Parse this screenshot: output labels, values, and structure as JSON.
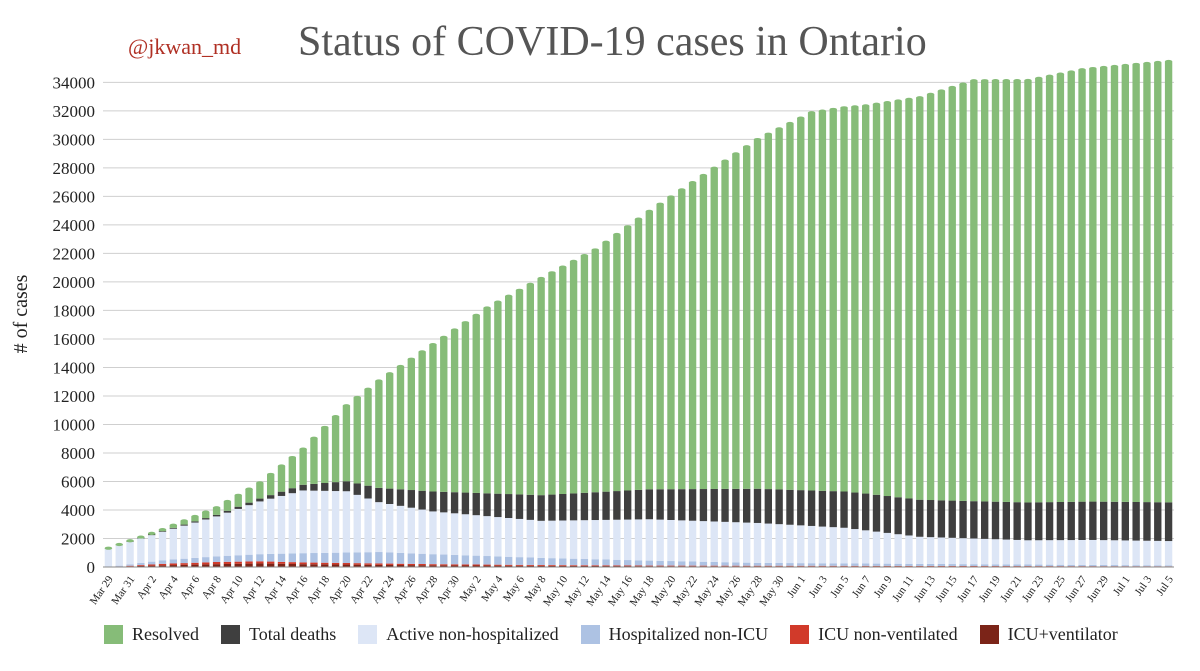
{
  "header": {
    "handle": "@jkwan_md"
  },
  "chart_data": {
    "type": "bar",
    "stacked": true,
    "title": "Status of COVID-19 cases in Ontario",
    "ylabel": "# of cases",
    "xlabel": "",
    "ylim": [
      0,
      35500
    ],
    "yticks": [
      0,
      2000,
      4000,
      6000,
      8000,
      10000,
      12000,
      14000,
      16000,
      18000,
      20000,
      22000,
      24000,
      26000,
      28000,
      30000,
      32000,
      34000
    ],
    "grid": true,
    "legend_position": "bottom",
    "x_start": "Mar 29",
    "x_end": "Jul 5",
    "x_tick_labels": [
      "Mar 29",
      "Mar 31",
      "Apr 2",
      "Apr 4",
      "Apr 6",
      "Apr 8",
      "Apr 10",
      "Apr 12",
      "Apr 14",
      "Apr 16",
      "Apr 18",
      "Apr 20",
      "Apr 22",
      "Apr 24",
      "Apr 26",
      "Apr 28",
      "Apr 30",
      "May 2",
      "May 4",
      "May 6",
      "May 8",
      "May 10",
      "May 12",
      "May 14",
      "May 16",
      "May 18",
      "May 20",
      "May 22",
      "May 24",
      "May 26",
      "May 28",
      "May 30",
      "Jun 1",
      "Jun 3",
      "Jun 5",
      "Jun 7",
      "Jun 9",
      "Jun 11",
      "Jun 13",
      "Jun 15",
      "Jun 17",
      "Jun 19",
      "Jun 21",
      "Jun 23",
      "Jun 25",
      "Jun 27",
      "Jun 29",
      "Jul 1",
      "Jul 3",
      "Jul 5"
    ],
    "series": [
      {
        "name": "ICU+ventilator",
        "color": "#7b2418",
        "keypoints": [
          [
            0,
            0
          ],
          [
            5,
            120
          ],
          [
            10,
            200
          ],
          [
            14,
            250
          ],
          [
            18,
            200
          ],
          [
            25,
            150
          ],
          [
            30,
            120
          ],
          [
            40,
            80
          ],
          [
            50,
            60
          ],
          [
            99,
            30
          ]
        ]
      },
      {
        "name": "ICU non-ventilated",
        "color": "#d13a2a",
        "keypoints": [
          [
            0,
            0
          ],
          [
            5,
            100
          ],
          [
            10,
            150
          ],
          [
            14,
            150
          ],
          [
            18,
            120
          ],
          [
            25,
            100
          ],
          [
            30,
            80
          ],
          [
            40,
            60
          ],
          [
            50,
            40
          ],
          [
            99,
            20
          ]
        ]
      },
      {
        "name": "Hospitalized non-ICU",
        "color": "#adc2e3",
        "keypoints": [
          [
            0,
            0
          ],
          [
            5,
            250
          ],
          [
            10,
            400
          ],
          [
            14,
            500
          ],
          [
            18,
            650
          ],
          [
            25,
            800
          ],
          [
            30,
            700
          ],
          [
            40,
            500
          ],
          [
            50,
            350
          ],
          [
            60,
            200
          ],
          [
            99,
            60
          ]
        ]
      },
      {
        "name": "Active non-hospitalized",
        "color": "#dde6f6",
        "keypoints": [
          [
            0,
            1300
          ],
          [
            5,
            2000
          ],
          [
            10,
            2800
          ],
          [
            14,
            3700
          ],
          [
            18,
            4400
          ],
          [
            22,
            4300
          ],
          [
            25,
            3500
          ],
          [
            30,
            3000
          ],
          [
            40,
            2600
          ],
          [
            50,
            2900
          ],
          [
            60,
            2800
          ],
          [
            68,
            2500
          ],
          [
            75,
            1900
          ],
          [
            80,
            1800
          ],
          [
            85,
            1700
          ],
          [
            91,
            1750
          ],
          [
            99,
            1700
          ]
        ]
      },
      {
        "name": "Total deaths",
        "color": "#3f3f3f",
        "keypoints": [
          [
            0,
            20
          ],
          [
            5,
            50
          ],
          [
            10,
            110
          ],
          [
            14,
            200
          ],
          [
            18,
            400
          ],
          [
            22,
            700
          ],
          [
            25,
            1000
          ],
          [
            30,
            1400
          ],
          [
            40,
            1800
          ],
          [
            50,
            2100
          ],
          [
            60,
            2400
          ],
          [
            70,
            2580
          ],
          [
            80,
            2620
          ],
          [
            90,
            2690
          ],
          [
            99,
            2720
          ]
        ]
      },
      {
        "name": "Resolved",
        "color": "#86bc78",
        "keypoints": [
          [
            0,
            0
          ],
          [
            5,
            100
          ],
          [
            10,
            500
          ],
          [
            14,
            1100
          ],
          [
            18,
            2500
          ],
          [
            22,
            5300
          ],
          [
            25,
            7500
          ],
          [
            30,
            10300
          ],
          [
            35,
            13000
          ],
          [
            40,
            15200
          ],
          [
            45,
            17000
          ],
          [
            50,
            19500
          ],
          [
            55,
            22000
          ],
          [
            60,
            24500
          ],
          [
            65,
            26500
          ],
          [
            70,
            27200
          ],
          [
            75,
            28200
          ],
          [
            80,
            29500
          ],
          [
            85,
            29600
          ],
          [
            90,
            30300
          ],
          [
            95,
            30700
          ],
          [
            99,
            31000
          ]
        ]
      }
    ]
  }
}
